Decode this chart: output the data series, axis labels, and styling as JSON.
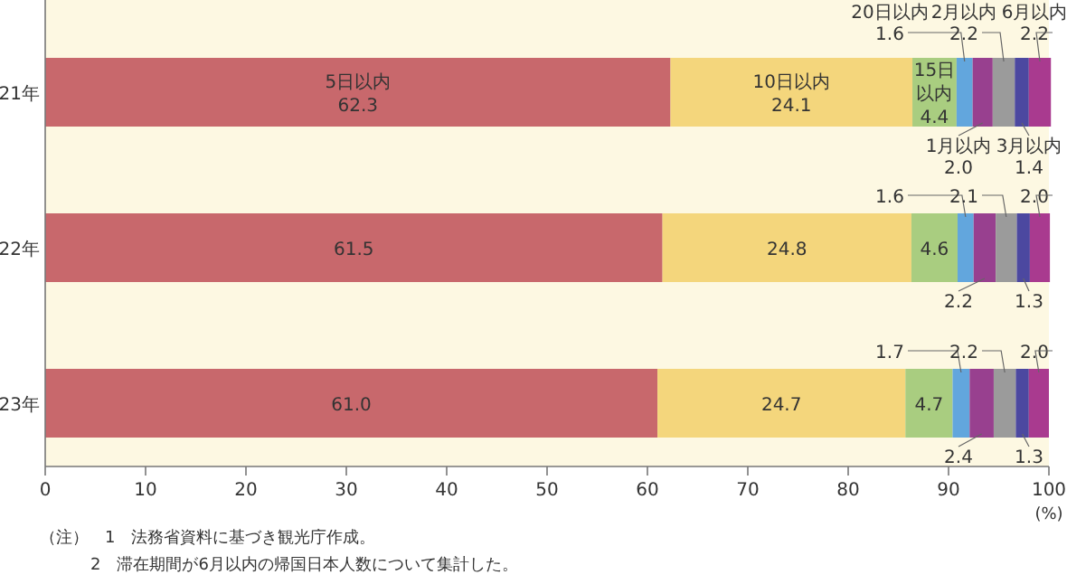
{
  "chart_data": {
    "type": "bar",
    "orientation": "horizontal",
    "stacked": true,
    "categories": [
      "21年",
      "22年",
      "23年"
    ],
    "series": [
      {
        "name": "5日以内",
        "color": "#c8686c",
        "values": [
          62.3,
          61.5,
          61.0
        ],
        "value_labels": [
          "62.3",
          "61.5",
          "61.0"
        ]
      },
      {
        "name": "10日以内",
        "color": "#f4d67c",
        "values": [
          24.1,
          24.8,
          24.7
        ],
        "value_labels": [
          "24.1",
          "24.8",
          "24.7"
        ]
      },
      {
        "name": "15日以内",
        "color": "#a9cd80",
        "values": [
          4.4,
          4.6,
          4.7
        ],
        "value_labels": [
          "4.4",
          "4.6",
          "4.7"
        ]
      },
      {
        "name": "20日以内",
        "color": "#62a6dd",
        "values": [
          1.6,
          1.6,
          1.7
        ],
        "value_labels": [
          "1.6",
          "1.6",
          "1.7"
        ]
      },
      {
        "name": "1月以内",
        "color": "#98408f",
        "values": [
          2.0,
          2.2,
          2.4
        ],
        "value_labels": [
          "2.0",
          "2.2",
          "2.4"
        ]
      },
      {
        "name": "2月以内",
        "color": "#9b9b9b",
        "values": [
          2.2,
          2.1,
          2.2
        ],
        "value_labels": [
          "2.2",
          "2.1",
          "2.2"
        ]
      },
      {
        "name": "3月以内",
        "color": "#4c48a0",
        "values": [
          1.4,
          1.3,
          1.3
        ],
        "value_labels": [
          "1.4",
          "1.3",
          "1.3"
        ]
      },
      {
        "name": "6月以内",
        "color": "#a93a8f",
        "values": [
          2.2,
          2.0,
          2.0
        ],
        "value_labels": [
          "2.2",
          "2.0",
          "2.0"
        ]
      }
    ],
    "xlim": [
      0,
      100
    ],
    "xticks": [
      0,
      10,
      20,
      30,
      40,
      50,
      60,
      70,
      80,
      90,
      100
    ],
    "xlabel": "(%)",
    "annotations": [
      "（注）　1　法務省資料に基づき観光庁作成。",
      "2　滞在期間が6月以内の帰国日本人数について集計した。"
    ]
  }
}
